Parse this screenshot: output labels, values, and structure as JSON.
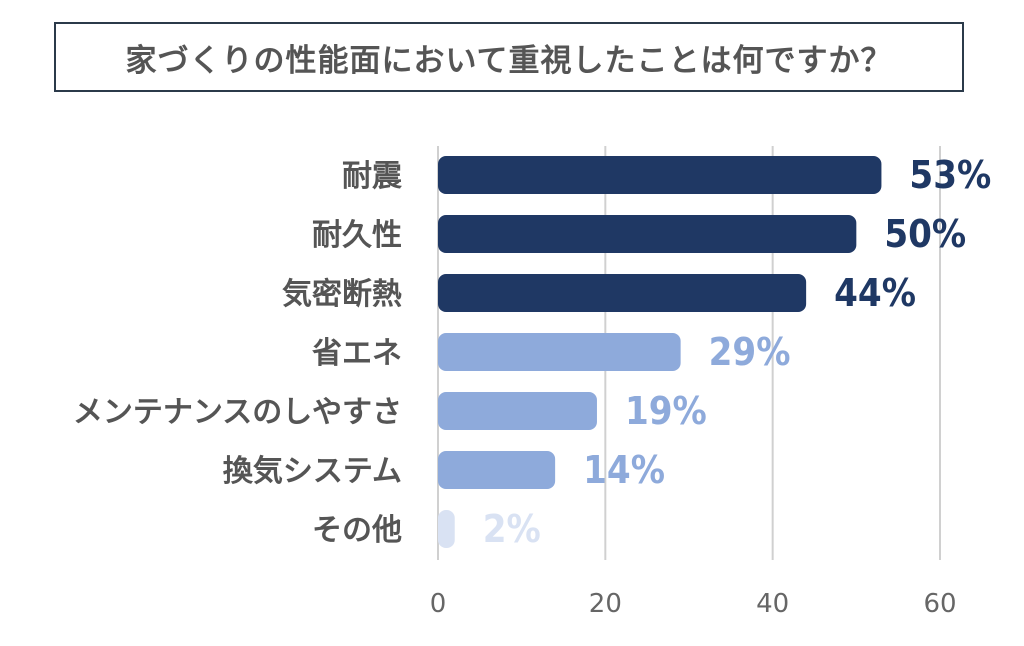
{
  "chart_data": {
    "type": "bar",
    "orientation": "horizontal",
    "title": "家づくりの性能面において重視したことは何ですか？",
    "categories": [
      "耐震",
      "耐久性",
      "気密断熱",
      "省エネ",
      "メンテナンスのしやすさ",
      "換気システム",
      "その他"
    ],
    "values": [
      53,
      50,
      44,
      29,
      19,
      14,
      2
    ],
    "value_labels": [
      "53%",
      "50%",
      "44%",
      "29%",
      "19%",
      "14%",
      "2%"
    ],
    "bar_colors": [
      "#1f3864",
      "#1f3864",
      "#1f3864",
      "#8eaadb",
      "#8eaadb",
      "#8eaadb",
      "#d9e2f3"
    ],
    "xlim": [
      0,
      60
    ],
    "x_ticks": [
      0,
      20,
      40,
      60
    ],
    "grid": "vertical"
  }
}
